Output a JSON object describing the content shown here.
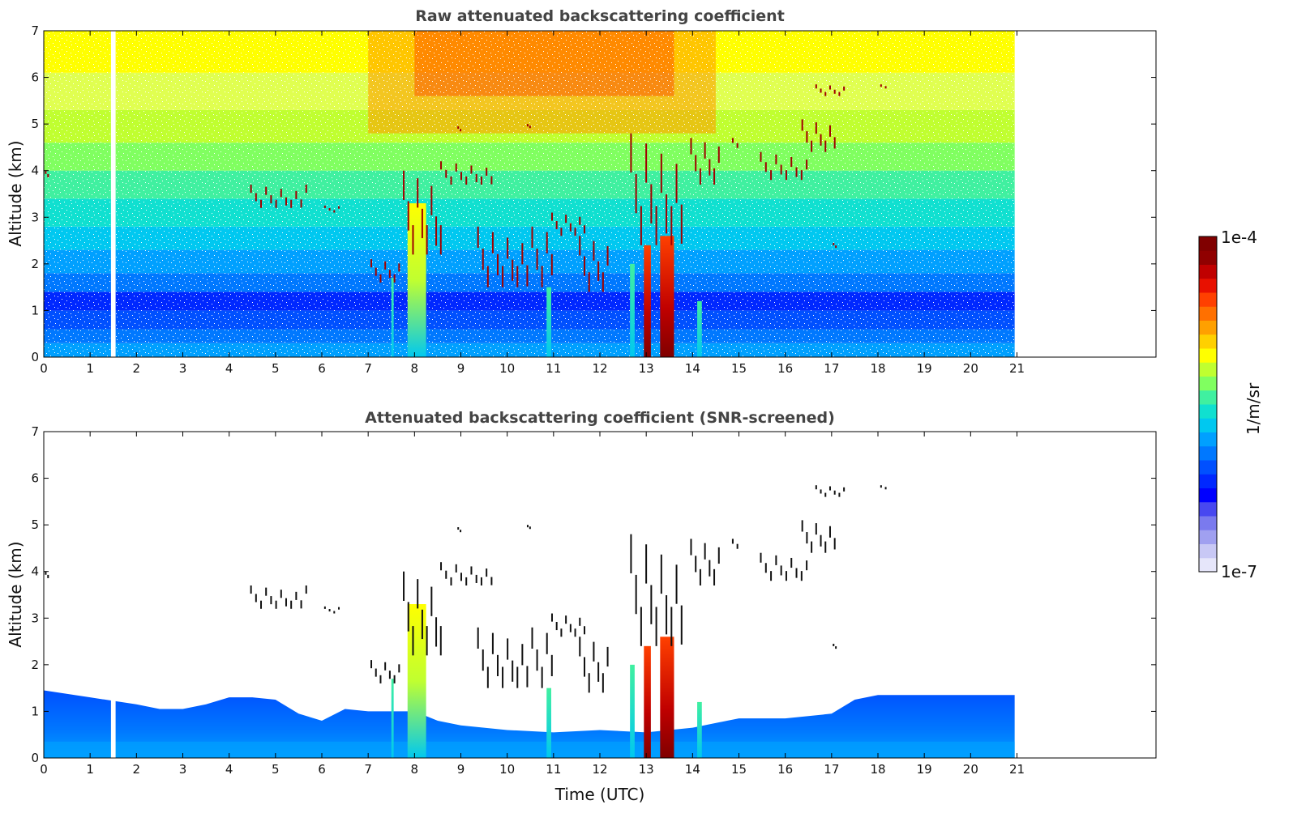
{
  "chart_data": [
    {
      "type": "heatmap",
      "title": "Raw attenuated backscattering coefficient",
      "ylabel": "Altitude (km)",
      "xlabel": "",
      "xlim": [
        0,
        24
      ],
      "ylim": [
        0,
        7
      ],
      "xticks": [
        0,
        1,
        2,
        3,
        4,
        5,
        6,
        7,
        8,
        9,
        10,
        11,
        12,
        13,
        14,
        15,
        16,
        17,
        18,
        19,
        20,
        21
      ],
      "yticks": [
        0,
        1,
        2,
        3,
        4,
        5,
        6,
        7
      ],
      "data_extent_hours": [
        0,
        20.95
      ],
      "data_gap_hours": [
        1.45,
        1.55
      ],
      "features": {
        "cloud_patches": [
          {
            "x": [
              0.0,
              0.1
            ],
            "y": [
              3.8,
              4.0
            ]
          },
          {
            "x": [
              4.4,
              5.7
            ],
            "y": [
              3.2,
              3.7
            ]
          },
          {
            "x": [
              6.0,
              6.4
            ],
            "y": [
              3.1,
              3.25
            ]
          },
          {
            "x": [
              7.0,
              7.7
            ],
            "y": [
              1.6,
              2.1
            ]
          },
          {
            "x": [
              7.7,
              8.6
            ],
            "y": [
              2.2,
              4.0
            ]
          },
          {
            "x": [
              8.5,
              9.7
            ],
            "y": [
              3.7,
              4.2
            ]
          },
          {
            "x": [
              8.9,
              9.0
            ],
            "y": [
              4.8,
              4.95
            ]
          },
          {
            "x": [
              9.3,
              11.0
            ],
            "y": [
              1.5,
              2.8
            ]
          },
          {
            "x": [
              10.4,
              10.5
            ],
            "y": [
              4.9,
              5.0
            ]
          },
          {
            "x": [
              10.9,
              11.7
            ],
            "y": [
              2.6,
              3.1
            ]
          },
          {
            "x": [
              11.5,
              12.2
            ],
            "y": [
              1.4,
              2.6
            ]
          },
          {
            "x": [
              12.6,
              13.8
            ],
            "y": [
              2.4,
              4.8
            ]
          },
          {
            "x": [
              13.9,
              14.6
            ],
            "y": [
              3.7,
              4.7
            ]
          },
          {
            "x": [
              14.8,
              15.0
            ],
            "y": [
              4.4,
              4.7
            ]
          },
          {
            "x": [
              15.4,
              16.5
            ],
            "y": [
              3.8,
              4.4
            ]
          },
          {
            "x": [
              16.3,
              17.1
            ],
            "y": [
              4.4,
              5.1
            ]
          },
          {
            "x": [
              16.6,
              17.3
            ],
            "y": [
              5.6,
              5.85
            ]
          },
          {
            "x": [
              17.0,
              17.1
            ],
            "y": [
              2.3,
              2.45
            ]
          },
          {
            "x": [
              18.0,
              18.2
            ],
            "y": [
              5.75,
              5.85
            ]
          }
        ],
        "strong_columns": [
          {
            "x": [
              7.5,
              7.55
            ],
            "y": [
              0,
              1.7
            ]
          },
          {
            "x": [
              7.85,
              8.25
            ],
            "y": [
              0,
              3.3
            ]
          },
          {
            "x": [
              10.85,
              10.95
            ],
            "y": [
              0,
              1.5
            ]
          },
          {
            "x": [
              12.65,
              12.75
            ],
            "y": [
              0,
              2.0
            ]
          },
          {
            "x": [
              12.95,
              13.1
            ],
            "y": [
              0,
              2.4
            ]
          },
          {
            "x": [
              13.3,
              13.6
            ],
            "y": [
              0,
              2.6
            ]
          },
          {
            "x": [
              14.1,
              14.2
            ],
            "y": [
              0,
              1.2
            ]
          }
        ]
      }
    },
    {
      "type": "heatmap",
      "title": "Attenuated backscattering coefficient (SNR-screened)",
      "ylabel": "Altitude (km)",
      "xlabel": "Time (UTC)",
      "xlim": [
        0,
        24
      ],
      "ylim": [
        0,
        7
      ],
      "xticks": [
        0,
        1,
        2,
        3,
        4,
        5,
        6,
        7,
        8,
        9,
        10,
        11,
        12,
        13,
        14,
        15,
        16,
        17,
        18,
        19,
        20,
        21
      ],
      "yticks": [
        0,
        1,
        2,
        3,
        4,
        5,
        6,
        7
      ],
      "data_extent_hours": [
        0,
        20.95
      ],
      "data_gap_hours": [
        1.45,
        1.55
      ],
      "boundary_layer_top_km": [
        [
          0,
          1.45
        ],
        [
          1,
          1.3
        ],
        [
          2,
          1.15
        ],
        [
          2.5,
          1.05
        ],
        [
          3,
          1.05
        ],
        [
          3.5,
          1.15
        ],
        [
          4,
          1.3
        ],
        [
          4.5,
          1.3
        ],
        [
          5,
          1.25
        ],
        [
          5.5,
          0.95
        ],
        [
          6,
          0.8
        ],
        [
          6.5,
          1.05
        ],
        [
          7,
          1.0
        ],
        [
          7.5,
          1.0
        ],
        [
          8,
          1.0
        ],
        [
          8.5,
          0.8
        ],
        [
          9,
          0.7
        ],
        [
          10,
          0.6
        ],
        [
          11,
          0.55
        ],
        [
          12,
          0.6
        ],
        [
          13,
          0.55
        ],
        [
          14,
          0.65
        ],
        [
          15,
          0.85
        ],
        [
          16,
          0.85
        ],
        [
          17,
          0.95
        ],
        [
          17.5,
          1.25
        ],
        [
          18,
          1.35
        ],
        [
          19,
          1.35
        ],
        [
          20,
          1.35
        ],
        [
          20.95,
          1.35
        ]
      ],
      "features": {
        "cloud_patches_black": [
          {
            "x": [
              0.0,
              0.1
            ],
            "y": [
              3.8,
              4.0
            ]
          },
          {
            "x": [
              4.4,
              5.7
            ],
            "y": [
              3.2,
              3.7
            ]
          },
          {
            "x": [
              6.0,
              6.4
            ],
            "y": [
              3.1,
              3.25
            ]
          },
          {
            "x": [
              7.0,
              7.7
            ],
            "y": [
              1.6,
              2.1
            ]
          },
          {
            "x": [
              7.7,
              8.6
            ],
            "y": [
              2.2,
              4.0
            ]
          },
          {
            "x": [
              8.5,
              9.7
            ],
            "y": [
              3.7,
              4.2
            ]
          },
          {
            "x": [
              8.9,
              9.0
            ],
            "y": [
              4.8,
              4.95
            ]
          },
          {
            "x": [
              9.3,
              11.0
            ],
            "y": [
              1.5,
              2.8
            ]
          },
          {
            "x": [
              10.4,
              10.5
            ],
            "y": [
              4.9,
              5.0
            ]
          },
          {
            "x": [
              10.9,
              11.7
            ],
            "y": [
              2.6,
              3.1
            ]
          },
          {
            "x": [
              11.5,
              12.2
            ],
            "y": [
              1.4,
              2.6
            ]
          },
          {
            "x": [
              12.6,
              13.8
            ],
            "y": [
              2.4,
              4.8
            ]
          },
          {
            "x": [
              13.9,
              14.6
            ],
            "y": [
              3.7,
              4.7
            ]
          },
          {
            "x": [
              14.8,
              15.0
            ],
            "y": [
              4.4,
              4.7
            ]
          },
          {
            "x": [
              15.4,
              16.5
            ],
            "y": [
              3.8,
              4.4
            ]
          },
          {
            "x": [
              16.3,
              17.1
            ],
            "y": [
              4.4,
              5.1
            ]
          },
          {
            "x": [
              16.6,
              17.3
            ],
            "y": [
              5.6,
              5.85
            ]
          },
          {
            "x": [
              17.0,
              17.1
            ],
            "y": [
              2.3,
              2.45
            ]
          },
          {
            "x": [
              18.0,
              18.2
            ],
            "y": [
              5.75,
              5.85
            ]
          }
        ],
        "strong_columns": [
          {
            "x": [
              7.5,
              7.55
            ],
            "y": [
              0,
              1.7
            ]
          },
          {
            "x": [
              7.85,
              8.25
            ],
            "y": [
              0,
              3.3
            ]
          },
          {
            "x": [
              10.85,
              10.95
            ],
            "y": [
              0,
              1.5
            ]
          },
          {
            "x": [
              12.65,
              12.75
            ],
            "y": [
              0,
              2.0
            ]
          },
          {
            "x": [
              12.95,
              13.1
            ],
            "y": [
              0,
              2.4
            ]
          },
          {
            "x": [
              13.3,
              13.6
            ],
            "y": [
              0,
              2.6
            ]
          },
          {
            "x": [
              14.1,
              14.2
            ],
            "y": [
              0,
              1.2
            ]
          }
        ]
      }
    }
  ],
  "colorbar": {
    "label": "1/m/sr",
    "max_label": "1e-4",
    "min_label": "1e-7",
    "colors": [
      "#e6e6fa",
      "#c8c8f5",
      "#a0a0f0",
      "#7a7aee",
      "#4848f0",
      "#0000ff",
      "#0028ff",
      "#0050ff",
      "#0078ff",
      "#00a0ff",
      "#00c8f0",
      "#10e0d0",
      "#40f0a0",
      "#80ff60",
      "#c0ff30",
      "#ffff00",
      "#ffd000",
      "#ffa000",
      "#ff7000",
      "#ff4000",
      "#e81000",
      "#c00000",
      "#900000",
      "#800000"
    ]
  }
}
